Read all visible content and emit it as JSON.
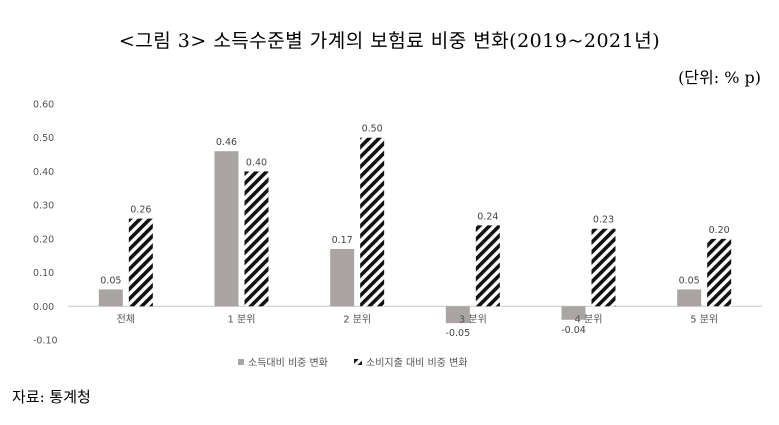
{
  "title": "<그림 3> 소득수준별 가계의 보험료 비중 변화(2019~2021년)",
  "unit": "(단위: % p)",
  "source": "자료: 통계청",
  "colors": {
    "series1": "#aaa5a3",
    "series2_stripe": "#111111",
    "axis_text": "#555555"
  },
  "chart_data": {
    "type": "bar",
    "categories": [
      "전체",
      "1 분위",
      "2 분위",
      "3 분위",
      "4 분위",
      "5 분위"
    ],
    "series": [
      {
        "name": "소득대비 비중 변화",
        "values": [
          0.05,
          0.46,
          0.17,
          -0.05,
          -0.04,
          0.05
        ],
        "labels": [
          "0.05",
          "0.46",
          "0.17",
          "-0.05",
          "-0.04",
          "0.05"
        ]
      },
      {
        "name": "소비지출 대비 비중 변화",
        "values": [
          0.26,
          0.4,
          0.5,
          0.24,
          0.23,
          0.2
        ],
        "labels": [
          "0.26",
          "0.40",
          "0.50",
          "0.24",
          "0.23",
          "0.20"
        ]
      }
    ],
    "yticks": [
      "0.60",
      "0.50",
      "0.40",
      "0.30",
      "0.20",
      "0.10",
      "0.00",
      "-0.10"
    ],
    "ylim": [
      -0.1,
      0.6
    ],
    "grid": false,
    "legend_position": "bottom"
  }
}
